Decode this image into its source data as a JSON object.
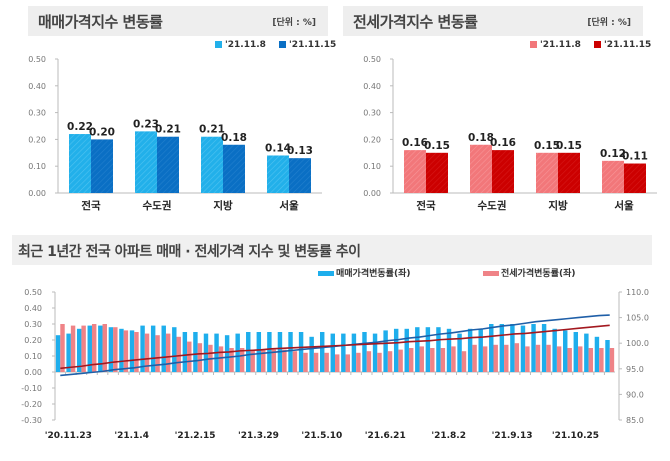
{
  "colors": {
    "sale_light": "#22b0ea",
    "sale_dark": "#0a6fc4",
    "jeonse_light": "#f2777a",
    "jeonse_dark": "#cc0000",
    "sale_bar": "#1eaeec",
    "jeonse_bar": "#ef8387",
    "sale_index_line": "#1f5fa8",
    "jeonse_index_line": "#a3181f"
  },
  "chart_data": [
    {
      "type": "bar",
      "title": "매매가격지수 변동률",
      "unit_label": "[단위 : %]",
      "categories": [
        "전국",
        "수도권",
        "지방",
        "서울"
      ],
      "series": [
        {
          "name": "'21.11.8",
          "values": [
            0.22,
            0.23,
            0.21,
            0.14
          ]
        },
        {
          "name": "'21.11.15",
          "values": [
            0.2,
            0.21,
            0.18,
            0.13
          ]
        }
      ],
      "yticks": [
        "0.00",
        "0.10",
        "0.20",
        "0.30",
        "0.40",
        "0.50"
      ],
      "ylim": [
        0,
        0.5
      ],
      "legend": "top-right",
      "xlabel": "",
      "ylabel": ""
    },
    {
      "type": "bar",
      "title": "전세가격지수 변동률",
      "unit_label": "[단위 : %]",
      "categories": [
        "전국",
        "수도권",
        "지방",
        "서울"
      ],
      "series": [
        {
          "name": "'21.11.8",
          "values": [
            0.16,
            0.18,
            0.15,
            0.12
          ]
        },
        {
          "name": "'21.11.15",
          "values": [
            0.15,
            0.16,
            0.15,
            0.11
          ]
        }
      ],
      "yticks": [
        "0.00",
        "0.10",
        "0.20",
        "0.30",
        "0.40",
        "0.50"
      ],
      "ylim": [
        0,
        0.5
      ],
      "legend": "top-right",
      "xlabel": "",
      "ylabel": ""
    },
    {
      "type": "bar",
      "title": "최근 1년간 전국 아파트 매매 · 전세가격 지수 및 변동률 추이",
      "x_tick_labels": [
        "'20.11.23",
        "'21.1.4",
        "'21.2.15",
        "'21.3.29",
        "'21.5.10",
        "'21.6.21",
        "'21.8.2",
        "'21.9.13",
        "'21.10.25"
      ],
      "x_tick_every": 6,
      "ylim_left": [
        -0.3,
        0.5
      ],
      "yticks_left": [
        "-0.30",
        "-0.20",
        "-0.10",
        "0.00",
        "0.10",
        "0.20",
        "0.30",
        "0.40",
        "0.50"
      ],
      "ylim_right": [
        85.0,
        110.0
      ],
      "yticks_right": [
        "85.0",
        "90.0",
        "95.0",
        "100.0",
        "105.0",
        "110.0"
      ],
      "legend": "top-right",
      "series": [
        {
          "name": "매매가격변동률(좌)",
          "axis": "left",
          "kind": "bar",
          "values": [
            0.23,
            0.24,
            0.27,
            0.29,
            0.29,
            0.28,
            0.27,
            0.26,
            0.29,
            0.29,
            0.29,
            0.28,
            0.25,
            0.25,
            0.24,
            0.24,
            0.23,
            0.24,
            0.25,
            0.25,
            0.25,
            0.25,
            0.25,
            0.25,
            0.22,
            0.25,
            0.24,
            0.24,
            0.24,
            0.25,
            0.24,
            0.26,
            0.27,
            0.27,
            0.28,
            0.28,
            0.28,
            0.27,
            0.24,
            0.27,
            0.27,
            0.3,
            0.3,
            0.3,
            0.29,
            0.3,
            0.3,
            0.27,
            0.26,
            0.25,
            0.24,
            0.22,
            0.2
          ]
        },
        {
          "name": "전세가격변동률(좌)",
          "axis": "left",
          "kind": "bar",
          "values": [
            0.3,
            0.29,
            0.29,
            0.3,
            0.3,
            0.28,
            0.26,
            0.25,
            0.24,
            0.23,
            0.24,
            0.22,
            0.19,
            0.18,
            0.17,
            0.16,
            0.15,
            0.15,
            0.14,
            0.14,
            0.14,
            0.14,
            0.13,
            0.12,
            0.12,
            0.12,
            0.11,
            0.11,
            0.12,
            0.13,
            0.12,
            0.13,
            0.14,
            0.15,
            0.16,
            0.15,
            0.15,
            0.16,
            0.13,
            0.17,
            0.16,
            0.17,
            0.17,
            0.18,
            0.16,
            0.17,
            0.17,
            0.16,
            0.15,
            0.16,
            0.15,
            0.15,
            0.15
          ]
        },
        {
          "name": "매매가격지수",
          "axis": "right",
          "kind": "line",
          "values": [
            93.7,
            93.9,
            94.1,
            94.3,
            94.5,
            94.8,
            95.0,
            95.2,
            95.5,
            95.7,
            95.9,
            96.2,
            96.4,
            96.6,
            96.9,
            97.1,
            97.3,
            97.5,
            97.8,
            98.0,
            98.2,
            98.4,
            98.6,
            98.8,
            99.0,
            99.2,
            99.4,
            99.6,
            99.8,
            100.0,
            100.2,
            100.5,
            100.7,
            101.0,
            101.2,
            101.5,
            101.8,
            102.0,
            102.3,
            102.6,
            102.8,
            103.1,
            103.4,
            103.6,
            103.9,
            104.2,
            104.4,
            104.6,
            104.8,
            105.0,
            105.2,
            105.4,
            105.5
          ]
        },
        {
          "name": "전세가격지수",
          "axis": "right",
          "kind": "line",
          "values": [
            95.1,
            95.3,
            95.5,
            95.8,
            96.0,
            96.3,
            96.5,
            96.7,
            96.9,
            97.1,
            97.3,
            97.5,
            97.7,
            97.9,
            98.0,
            98.2,
            98.3,
            98.5,
            98.6,
            98.7,
            98.9,
            99.0,
            99.1,
            99.2,
            99.3,
            99.4,
            99.5,
            99.6,
            99.7,
            99.8,
            99.9,
            100.0,
            100.1,
            100.3,
            100.4,
            100.5,
            100.7,
            100.8,
            100.9,
            101.1,
            101.2,
            101.4,
            101.6,
            101.8,
            101.9,
            102.1,
            102.3,
            102.5,
            102.7,
            102.9,
            103.1,
            103.3,
            103.5
          ]
        }
      ]
    }
  ]
}
